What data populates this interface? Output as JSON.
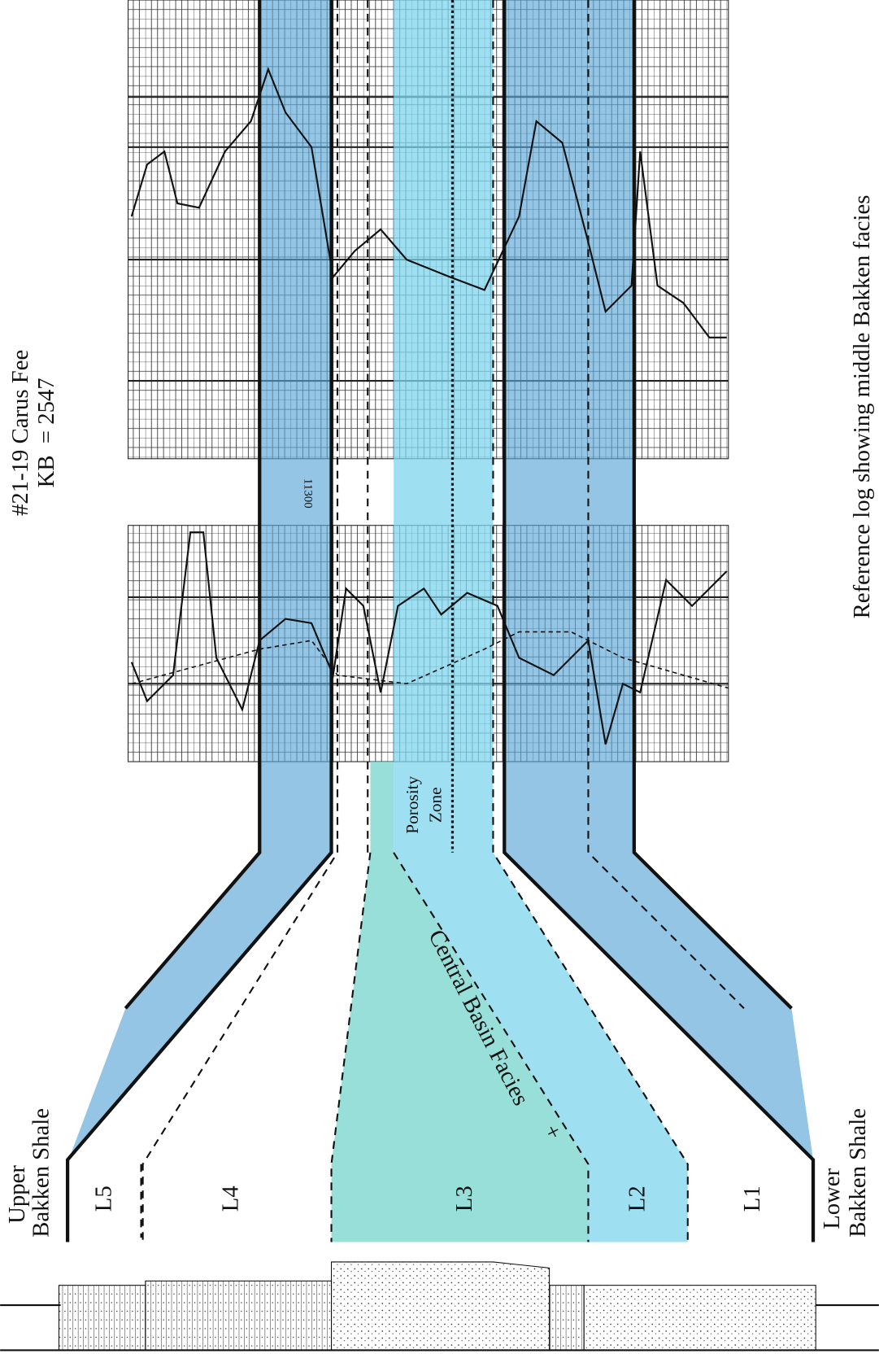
{
  "header": {
    "well": "#21-19 Carus Fee",
    "kb": "KB  = 2547"
  },
  "caption": "Reference log showing middle Bakken facies",
  "depth_marker": "11300",
  "porosity_zone": {
    "line1": "Porosity",
    "line2": "Zone"
  },
  "facies_note": {
    "symbol": "+",
    "text": "Central Basin Facies"
  },
  "upper_shale": {
    "line1": "Upper",
    "line2": "Bakken Shale"
  },
  "lower_shale": {
    "line1": "Lower",
    "line2": "Bakken Shale"
  },
  "units": [
    "L5",
    "L4",
    "L3",
    "L2",
    "L1"
  ]
}
